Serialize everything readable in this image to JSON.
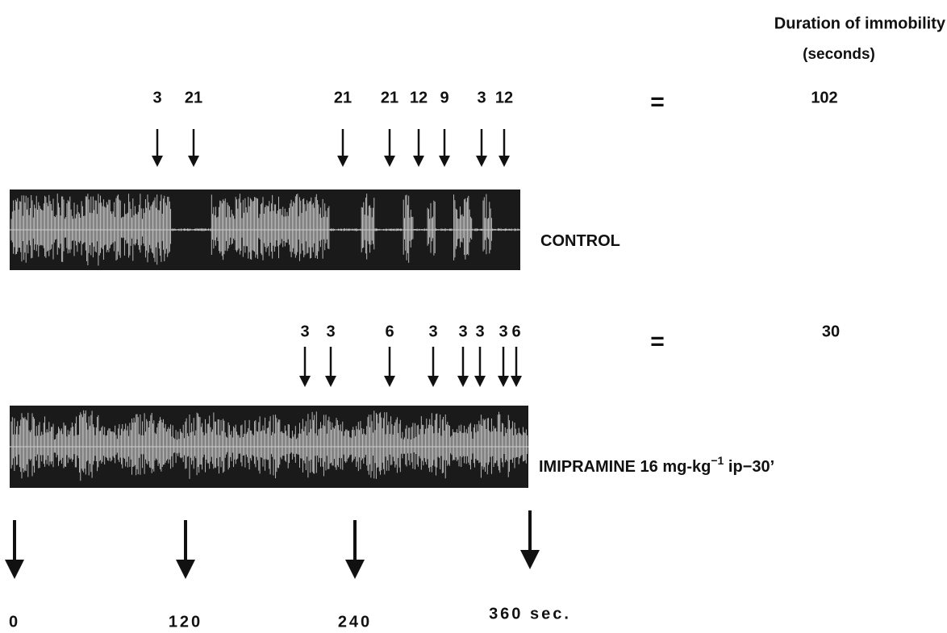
{
  "header": {
    "title": "Duration of immobility",
    "unit": "(seconds)"
  },
  "rows": [
    {
      "name": "CONTROL",
      "episodes": [
        "3",
        "21",
        "21",
        "21",
        "12",
        "9",
        "3",
        "12"
      ],
      "equals": "=",
      "total": "102"
    },
    {
      "name": "IMIPRAMINE 16 mg-kg",
      "name_sup": "−1",
      "name_tail": " ip−30’",
      "episodes": [
        "3",
        "3",
        "6",
        "3",
        "3",
        "3",
        "3",
        "6"
      ],
      "equals": "=",
      "total": "30"
    }
  ],
  "time_axis": [
    "0",
    "120",
    "240",
    "360 sec."
  ]
}
